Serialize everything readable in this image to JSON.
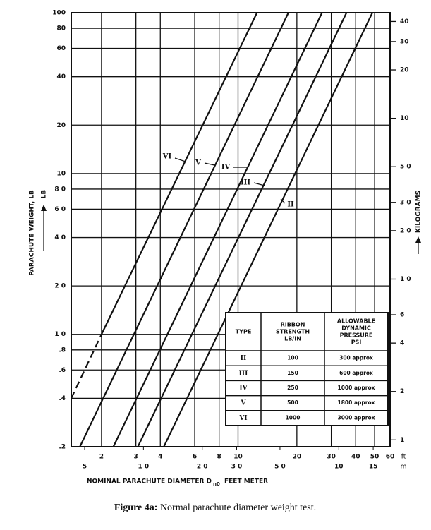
{
  "chart_data": {
    "type": "line",
    "xlabel": "NOMINAL PARACHUTE DIAMETER D",
    "xlabel_sub": "n0",
    "xlabel_units": "FEET METER",
    "ylabel": "PARACHUTE WEIGHT, LB",
    "y_unit": "LB",
    "y2label": "KILOGRAMS",
    "xunit": "ft",
    "x2unit": "m",
    "log_x": true,
    "log_y": true,
    "grid": true,
    "xlim": [
      1.4,
      60
    ],
    "xticks": [
      2,
      3,
      4,
      6,
      8,
      10,
      20,
      30,
      40,
      50,
      60
    ],
    "x2lim": [
      0.427,
      18.3
    ],
    "x2ticks": [
      {
        "value": 0.5,
        "label": "5"
      },
      {
        "value": 1,
        "label": "1 0"
      },
      {
        "value": 2,
        "label": "2 0"
      },
      {
        "value": 3,
        "label": "3 0"
      },
      {
        "value": 5,
        "label": "5 0"
      },
      10,
      15
    ],
    "ylim": [
      0.2,
      100
    ],
    "yticks": [
      100,
      80,
      60,
      40,
      20,
      10,
      {
        "value": 8,
        "label": "8 0"
      },
      {
        "value": 6,
        "label": "6 0"
      },
      {
        "value": 4,
        "label": "4 0"
      },
      {
        "value": 2,
        "label": "2 0"
      },
      {
        "value": 1,
        "label": "1 0"
      },
      {
        "value": 0.8,
        "label": ".8"
      },
      {
        "value": 0.6,
        "label": ".6"
      },
      {
        "value": 0.4,
        "label": ".4"
      },
      {
        "value": 0.2,
        "label": ".2"
      }
    ],
    "y2lim": [
      0.0907,
      45.36
    ],
    "y2ticks": [
      40,
      30,
      20,
      10,
      {
        "value": 5,
        "label": "5 0"
      },
      {
        "value": 3,
        "label": "3 0"
      },
      {
        "value": 2,
        "label": "2 0"
      },
      {
        "value": 1,
        "label": "1 0"
      },
      {
        "value": 0.6,
        "label": "6"
      },
      {
        "value": 0.4,
        "label": "4"
      },
      {
        "value": 0.2,
        "label": "2"
      },
      {
        "value": 0.1,
        "label": "1"
      }
    ],
    "series": [
      {
        "name": "VI",
        "color": "#111111",
        "x": [
          1.4,
          2.0,
          12.5
        ],
        "values": [
          0.4,
          1.0,
          100
        ],
        "dashed": [
          true,
          false
        ]
      },
      {
        "name": "V",
        "color": "#111111",
        "x": [
          1.55,
          18.1
        ],
        "values": [
          0.2,
          100
        ],
        "dashed": [
          false
        ]
      },
      {
        "name": "IV",
        "color": "#111111",
        "x": [
          2.3,
          26.9
        ],
        "values": [
          0.2,
          100
        ],
        "dashed": [
          false
        ]
      },
      {
        "name": "III",
        "color": "#111111",
        "x": [
          3.07,
          35.9
        ],
        "values": [
          0.2,
          100
        ],
        "dashed": [
          false
        ]
      },
      {
        "name": "II",
        "color": "#111111",
        "x": [
          4.17,
          48.7
        ],
        "values": [
          0.2,
          100
        ],
        "dashed": [
          false
        ]
      }
    ],
    "table": {
      "headers": [
        [
          "TYPE"
        ],
        [
          "RIBBON",
          "STRENGTH",
          "LB/IN"
        ],
        [
          "ALLOWABLE",
          "DYNAMIC",
          "PRESSURE",
          "PSI"
        ]
      ],
      "rows": [
        [
          "II",
          "100",
          "300 approx"
        ],
        [
          "III",
          "150",
          "600 approx"
        ],
        [
          "IV",
          "250",
          "1000 approx"
        ],
        [
          "V",
          "500",
          "1800 approx"
        ],
        [
          "VI",
          "1000",
          "3000 approx"
        ]
      ]
    },
    "caption_label": "Figure 4a:",
    "caption": "Normal parachute diameter weight test."
  }
}
